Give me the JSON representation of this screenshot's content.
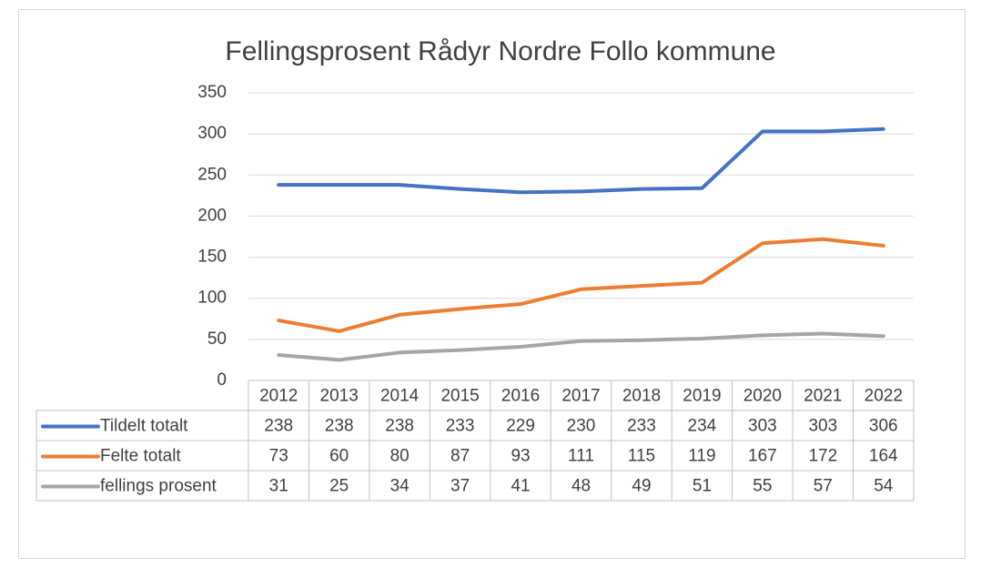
{
  "chart_data": {
    "type": "line",
    "title": "Fellingsprosent Rådyr Nordre Follo kommune",
    "categories": [
      "2012",
      "2013",
      "2014",
      "2015",
      "2016",
      "2017",
      "2018",
      "2019",
      "2020",
      "2021",
      "2022"
    ],
    "series": [
      {
        "name": "Tildelt totalt",
        "color": "#4472c4",
        "values": [
          238,
          238,
          238,
          233,
          229,
          230,
          233,
          234,
          303,
          303,
          306
        ]
      },
      {
        "name": "Felte totalt",
        "color": "#ed7d31",
        "values": [
          73,
          60,
          80,
          87,
          93,
          111,
          115,
          119,
          167,
          172,
          164
        ]
      },
      {
        "name": "fellings prosent",
        "color": "#a5a5a5",
        "values": [
          31,
          25,
          34,
          37,
          41,
          48,
          49,
          51,
          55,
          57,
          54
        ]
      }
    ],
    "ylim": [
      0,
      350
    ],
    "yticks": [
      0,
      50,
      100,
      150,
      200,
      250,
      300,
      350
    ],
    "grid": true
  }
}
